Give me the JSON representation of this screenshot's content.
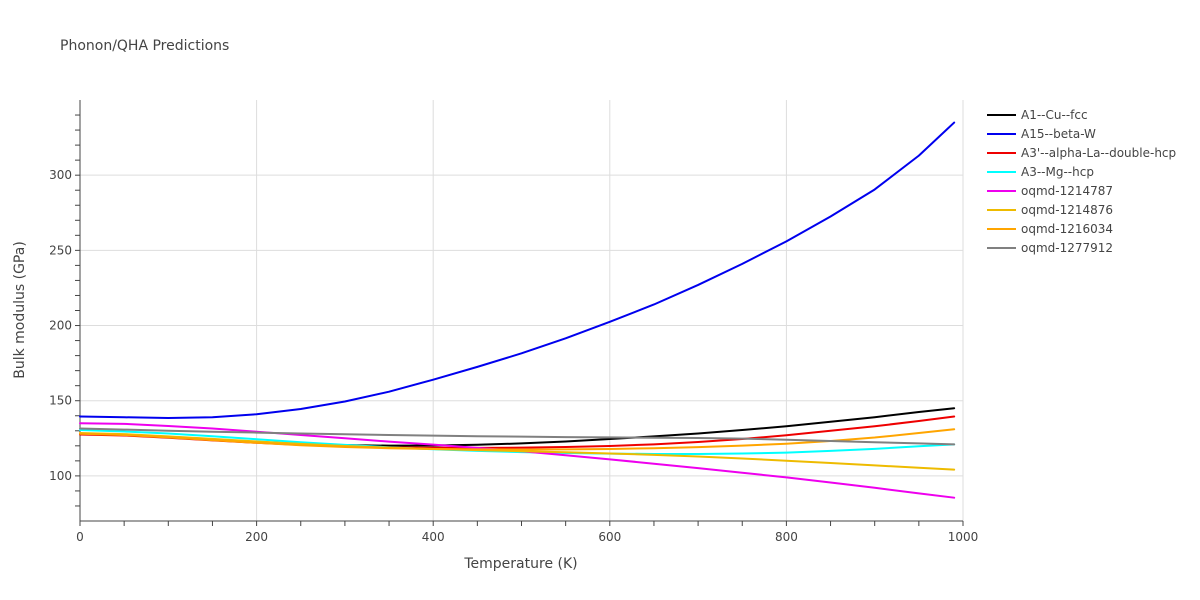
{
  "chart_data": {
    "type": "line",
    "title": "Phonon/QHA Predictions",
    "xlabel": "Temperature (K)",
    "ylabel": "Bulk modulus (GPa)",
    "xlim": [
      0,
      1000
    ],
    "ylim": [
      70,
      350
    ],
    "xticks": [
      0,
      200,
      400,
      600,
      800,
      1000
    ],
    "yticks": [
      100,
      150,
      200,
      250,
      300
    ],
    "grid": true,
    "legend_position": "top-right",
    "x": [
      0,
      50,
      100,
      150,
      200,
      250,
      300,
      350,
      400,
      450,
      500,
      550,
      600,
      650,
      700,
      750,
      800,
      850,
      900,
      950,
      990
    ],
    "series": [
      {
        "name": "A1--Cu--fcc",
        "color": "#000000",
        "values": [
          128.0,
          127.3,
          125.9,
          124.2,
          122.6,
          121.3,
          120.5,
          120.1,
          120.2,
          120.7,
          121.6,
          122.9,
          124.5,
          126.3,
          128.2,
          130.5,
          133.0,
          136.0,
          139.0,
          142.5,
          145.0
        ]
      },
      {
        "name": "A15--beta-W",
        "color": "#0000ee",
        "values": [
          139.5,
          139.0,
          138.5,
          139.0,
          141.0,
          144.5,
          149.5,
          156.0,
          164.0,
          172.5,
          181.5,
          191.5,
          202.5,
          214.0,
          227.0,
          241.0,
          256.0,
          272.5,
          290.5,
          313.0,
          335.0
        ]
      },
      {
        "name": "A3'--alpha-La--double-hcp",
        "color": "#ee0000",
        "values": [
          127.5,
          126.9,
          125.4,
          123.6,
          122.0,
          120.6,
          119.6,
          119.0,
          118.7,
          118.6,
          118.8,
          119.2,
          119.9,
          121.0,
          122.5,
          124.5,
          127.0,
          130.0,
          133.0,
          136.5,
          139.5
        ]
      },
      {
        "name": "A3--Mg--hcp",
        "color": "#00ffff",
        "values": [
          130.5,
          129.5,
          128.2,
          126.4,
          124.4,
          122.4,
          120.6,
          119.0,
          117.7,
          116.6,
          115.8,
          115.2,
          114.8,
          114.6,
          114.6,
          114.9,
          115.5,
          116.6,
          118.0,
          119.7,
          121.0
        ]
      },
      {
        "name": "oqmd-1214787",
        "color": "#ee00ee",
        "values": [
          135.0,
          134.6,
          133.2,
          131.5,
          129.4,
          127.2,
          125.0,
          122.8,
          120.8,
          118.6,
          116.4,
          113.7,
          111.0,
          108.1,
          105.2,
          102.1,
          99.0,
          95.6,
          92.1,
          88.4,
          85.5
        ]
      },
      {
        "name": "oqmd-1214876",
        "color": "#eebb00",
        "values": [
          128.5,
          127.8,
          126.3,
          124.6,
          122.9,
          121.3,
          119.9,
          118.8,
          117.9,
          117.1,
          116.4,
          115.7,
          114.9,
          114.0,
          112.9,
          111.6,
          110.1,
          108.6,
          107.0,
          105.4,
          104.2
        ]
      },
      {
        "name": "oqmd-1216034",
        "color": "#ffa500",
        "values": [
          128.0,
          127.2,
          125.6,
          123.8,
          122.0,
          120.4,
          119.2,
          118.4,
          117.9,
          117.6,
          117.5,
          117.6,
          117.9,
          118.4,
          119.1,
          120.1,
          121.4,
          123.2,
          125.5,
          128.5,
          131.0
        ]
      },
      {
        "name": "oqmd-1277912",
        "color": "#808080",
        "values": [
          131.5,
          130.8,
          130.0,
          129.4,
          128.8,
          128.2,
          127.7,
          127.2,
          126.8,
          126.4,
          126.1,
          125.8,
          125.6,
          125.4,
          125.2,
          124.8,
          124.0,
          123.2,
          122.4,
          121.6,
          121.0
        ]
      }
    ]
  }
}
